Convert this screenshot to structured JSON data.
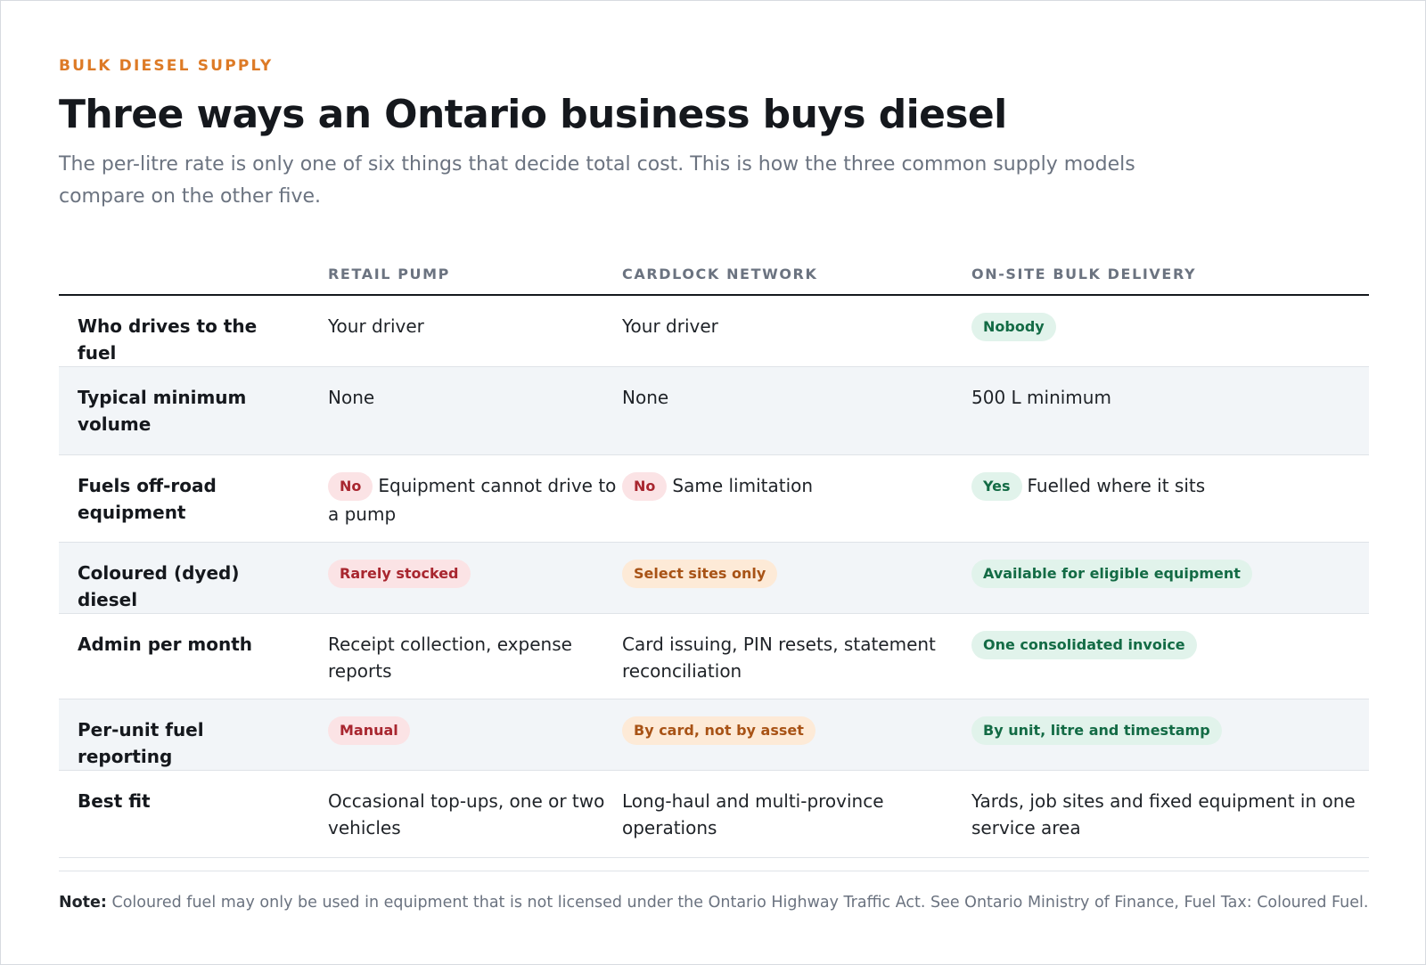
{
  "header": {
    "eyebrow": "BULK DIESEL SUPPLY",
    "title": "Three ways an Ontario business buys diesel",
    "subtitle": "The per-litre rate is only one of six things that decide total cost. This is how the three common supply models compare on the other five."
  },
  "table": {
    "columns": [
      "RETAIL PUMP",
      "CARDLOCK NETWORK",
      "ON-SITE BULK DELIVERY"
    ],
    "rows": [
      {
        "label": "Who drives to the fuel",
        "cells": [
          {
            "text": "Your driver"
          },
          {
            "text": "Your driver"
          },
          {
            "pill": "Nobody",
            "tone": "green"
          }
        ]
      },
      {
        "label": "Typical minimum volume",
        "cells": [
          {
            "text": "None"
          },
          {
            "text": "None"
          },
          {
            "text": "500 L minimum"
          }
        ]
      },
      {
        "label": "Fuels off-road equipment",
        "cells": [
          {
            "pill": "No",
            "tone": "red",
            "text": "Equipment cannot drive to a pump"
          },
          {
            "pill": "No",
            "tone": "red",
            "text": "Same limitation"
          },
          {
            "pill": "Yes",
            "tone": "green",
            "text": "Fuelled where it sits"
          }
        ]
      },
      {
        "label": "Coloured (dyed) diesel",
        "cells": [
          {
            "pill": "Rarely stocked",
            "tone": "red"
          },
          {
            "pill": "Select sites only",
            "tone": "orange"
          },
          {
            "pill": "Available for eligible equipment",
            "tone": "green"
          }
        ]
      },
      {
        "label": "Admin per month",
        "cells": [
          {
            "text": "Receipt collection, expense reports"
          },
          {
            "text": "Card issuing, PIN resets, statement reconciliation"
          },
          {
            "pill": "One consolidated invoice",
            "tone": "green"
          }
        ]
      },
      {
        "label": "Per-unit fuel reporting",
        "cells": [
          {
            "pill": "Manual",
            "tone": "red"
          },
          {
            "pill": "By card, not by asset",
            "tone": "orange"
          },
          {
            "pill": "By unit, litre and timestamp",
            "tone": "green"
          }
        ]
      },
      {
        "label": "Best fit",
        "cells": [
          {
            "text": "Occasional top-ups, one or two vehicles"
          },
          {
            "text": "Long-haul and multi-province operations"
          },
          {
            "text": "Yards, job sites and fixed equipment in one service area"
          }
        ]
      }
    ]
  },
  "note": {
    "label": "Note:",
    "text": " Coloured fuel may only be used in equipment that is not licensed under the Ontario Highway Traffic Act. See Ontario Ministry of Finance, Fuel Tax: Coloured Fuel."
  }
}
